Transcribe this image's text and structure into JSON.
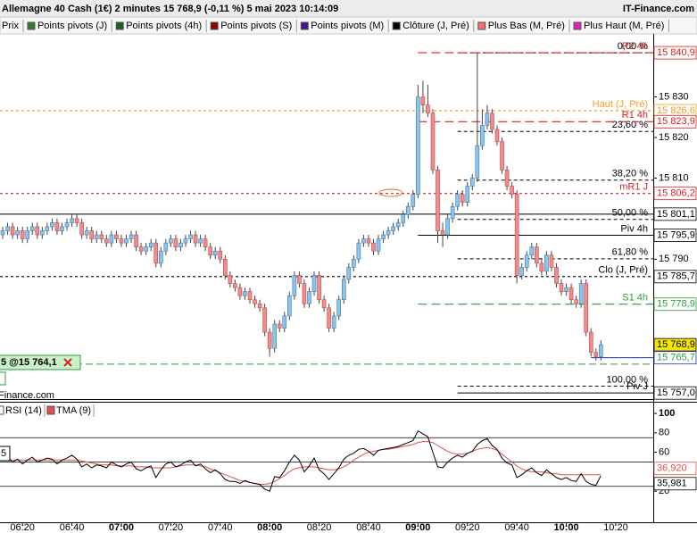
{
  "header": {
    "title": "Allemagne 40 Cash (1€) 2 minutes 15 768,9 (-0,11 %) 5 mai 2023 10:14:09",
    "brand": "IT-Finance.com",
    "watermark": "Finance.com"
  },
  "legend": [
    {
      "name": "Prix"
    },
    {
      "name": "Points pivots (J)",
      "color": "#2e7d32"
    },
    {
      "name": "Points pivots (4h)",
      "color": "#1b5e20"
    },
    {
      "name": "Points pivots (S)",
      "color": "#8b0000"
    },
    {
      "name": "Points pivots (M)",
      "color": "#4a148c"
    },
    {
      "name": "Clôture (J, Pré)",
      "color": "#000000"
    },
    {
      "name": "Plus Bas (M, Pré)",
      "color": "#f07070"
    },
    {
      "name": "Plus Haut (M, Pré)",
      "color": "#e020c0"
    }
  ],
  "chart_data": {
    "type": "candlestick",
    "up_color": "#8ec3ea",
    "down_color": "#f08c8c",
    "x": [
      "06:12",
      "06:14",
      "06:16",
      "06:18",
      "06:20",
      "06:22",
      "06:24",
      "06:26",
      "06:28",
      "06:30",
      "06:32",
      "06:34",
      "06:36",
      "06:38",
      "06:40",
      "06:42",
      "06:44",
      "06:46",
      "06:48",
      "06:50",
      "06:52",
      "06:54",
      "06:56",
      "06:58",
      "07:00",
      "07:02",
      "07:04",
      "07:06",
      "07:08",
      "07:10",
      "07:12",
      "07:14",
      "07:16",
      "07:18",
      "07:20",
      "07:22",
      "07:24",
      "07:26",
      "07:28",
      "07:30",
      "07:32",
      "07:34",
      "07:36",
      "07:38",
      "07:40",
      "07:42",
      "07:44",
      "07:46",
      "07:48",
      "07:50",
      "07:52",
      "07:54",
      "07:56",
      "07:58",
      "08:00",
      "08:02",
      "08:04",
      "08:06",
      "08:08",
      "08:10",
      "08:12",
      "08:14",
      "08:16",
      "08:18",
      "08:20",
      "08:22",
      "08:24",
      "08:26",
      "08:28",
      "08:30",
      "08:32",
      "08:34",
      "08:36",
      "08:38",
      "08:40",
      "08:42",
      "08:44",
      "08:46",
      "08:48",
      "08:50",
      "08:52",
      "08:54",
      "08:56",
      "08:58",
      "09:00",
      "09:02",
      "09:04",
      "09:06",
      "09:08",
      "09:10",
      "09:12",
      "09:14",
      "09:16",
      "09:18",
      "09:20",
      "09:22",
      "09:24",
      "09:26",
      "09:28",
      "09:30",
      "09:32",
      "09:34",
      "09:36",
      "09:38",
      "09:40",
      "09:42",
      "09:44",
      "09:46",
      "09:48",
      "09:50",
      "09:52",
      "09:54",
      "09:56",
      "09:58",
      "10:00",
      "10:02",
      "10:04",
      "10:06",
      "10:08",
      "10:10",
      "10:12",
      "10:14"
    ],
    "ohlc": [
      [
        15796,
        15798,
        15795,
        15797
      ],
      [
        15797,
        15799,
        15796,
        15798
      ],
      [
        15798,
        15799,
        15795,
        15796
      ],
      [
        15796,
        15798,
        15795,
        15797
      ],
      [
        15797,
        15798,
        15794,
        15795
      ],
      [
        15795,
        15798,
        15794,
        15797
      ],
      [
        15797,
        15799,
        15796,
        15798
      ],
      [
        15798,
        15799,
        15795,
        15796
      ],
      [
        15796,
        15798,
        15795,
        15797
      ],
      [
        15797,
        15799,
        15796,
        15798
      ],
      [
        15798,
        15800,
        15797,
        15799
      ],
      [
        15799,
        15800,
        15796,
        15797
      ],
      [
        15797,
        15799,
        15796,
        15798
      ],
      [
        15798,
        15800,
        15797,
        15799
      ],
      [
        15799,
        15801,
        15798,
        15800
      ],
      [
        15800,
        15801,
        15798,
        15799
      ],
      [
        15799,
        15800,
        15795,
        15796
      ],
      [
        15796,
        15798,
        15795,
        15797
      ],
      [
        15797,
        15798,
        15794,
        15795
      ],
      [
        15795,
        15797,
        15794,
        15796
      ],
      [
        15796,
        15797,
        15794,
        15795
      ],
      [
        15795,
        15796,
        15793,
        15794
      ],
      [
        15794,
        15797,
        15793,
        15796
      ],
      [
        15796,
        15797,
        15794,
        15795
      ],
      [
        15795,
        15796,
        15793,
        15794
      ],
      [
        15794,
        15796,
        15793,
        15795
      ],
      [
        15795,
        15797,
        15794,
        15796
      ],
      [
        15796,
        15797,
        15792,
        15793
      ],
      [
        15793,
        15794,
        15791,
        15792
      ],
      [
        15792,
        15794,
        15791,
        15793
      ],
      [
        15793,
        15795,
        15792,
        15794
      ],
      [
        15794,
        15795,
        15788,
        15789
      ],
      [
        15789,
        15793,
        15788,
        15792
      ],
      [
        15792,
        15795,
        15791,
        15794
      ],
      [
        15794,
        15796,
        15793,
        15795
      ],
      [
        15795,
        15796,
        15792,
        15793
      ],
      [
        15793,
        15795,
        15792,
        15794
      ],
      [
        15794,
        15796,
        15793,
        15795
      ],
      [
        15795,
        15797,
        15794,
        15796
      ],
      [
        15796,
        15797,
        15793,
        15794
      ],
      [
        15794,
        15796,
        15793,
        15795
      ],
      [
        15795,
        15796,
        15792,
        15793
      ],
      [
        15793,
        15794,
        15790,
        15791
      ],
      [
        15791,
        15793,
        15790,
        15792
      ],
      [
        15792,
        15793,
        15789,
        15790
      ],
      [
        15790,
        15791,
        15785,
        15786
      ],
      [
        15786,
        15787,
        15783,
        15784
      ],
      [
        15784,
        15785,
        15782,
        15783
      ],
      [
        15783,
        15784,
        15780,
        15781
      ],
      [
        15781,
        15783,
        15780,
        15782
      ],
      [
        15782,
        15783,
        15779,
        15780
      ],
      [
        15780,
        15781,
        15778,
        15779
      ],
      [
        15779,
        15780,
        15777,
        15778
      ],
      [
        15778,
        15779,
        15771,
        15772
      ],
      [
        15772,
        15773,
        15766,
        15768
      ],
      [
        15768,
        15775,
        15767,
        15774
      ],
      [
        15774,
        15775,
        15772,
        15773
      ],
      [
        15773,
        15777,
        15772,
        15776
      ],
      [
        15776,
        15782,
        15775,
        15781
      ],
      [
        15781,
        15787,
        15780,
        15786
      ],
      [
        15786,
        15787,
        15783,
        15784
      ],
      [
        15784,
        15785,
        15778,
        15779
      ],
      [
        15779,
        15783,
        15778,
        15782
      ],
      [
        15782,
        15787,
        15781,
        15786
      ],
      [
        15786,
        15787,
        15779,
        15780
      ],
      [
        15780,
        15781,
        15777,
        15778
      ],
      [
        15778,
        15779,
        15772,
        15773
      ],
      [
        15773,
        15777,
        15772,
        15776
      ],
      [
        15776,
        15781,
        15775,
        15780
      ],
      [
        15780,
        15786,
        15779,
        15785
      ],
      [
        15785,
        15789,
        15784,
        15788
      ],
      [
        15788,
        15791,
        15787,
        15790
      ],
      [
        15790,
        15795,
        15789,
        15794
      ],
      [
        15794,
        15796,
        15793,
        15795
      ],
      [
        15795,
        15796,
        15793,
        15794
      ],
      [
        15794,
        15795,
        15791,
        15792
      ],
      [
        15792,
        15796,
        15791,
        15795
      ],
      [
        15795,
        15797,
        15794,
        15796
      ],
      [
        15796,
        15798,
        15795,
        15797
      ],
      [
        15797,
        15799,
        15796,
        15798
      ],
      [
        15798,
        15800,
        15797,
        15799
      ],
      [
        15799,
        15802,
        15798,
        15801
      ],
      [
        15801,
        15804,
        15800,
        15803
      ],
      [
        15803,
        15807,
        15802,
        15806
      ],
      [
        15806,
        15833,
        15805,
        15830
      ],
      [
        15830,
        15834,
        15826,
        15828
      ],
      [
        15828,
        15833,
        15825,
        15826
      ],
      [
        15826,
        15827,
        15811,
        15812
      ],
      [
        15812,
        15813,
        15794,
        15797
      ],
      [
        15797,
        15799,
        15793,
        15796
      ],
      [
        15796,
        15801,
        15795,
        15800
      ],
      [
        15800,
        15804,
        15799,
        15803
      ],
      [
        15803,
        15807,
        15802,
        15806
      ],
      [
        15806,
        15807,
        15803,
        15804
      ],
      [
        15804,
        15809,
        15803,
        15808
      ],
      [
        15808,
        15811,
        15807,
        15810
      ],
      [
        15810,
        15841,
        15809,
        15818
      ],
      [
        15818,
        15827,
        15817,
        15823
      ],
      [
        15823,
        15828,
        15822,
        15826
      ],
      [
        15826,
        15827,
        15821,
        15822
      ],
      [
        15822,
        15823,
        15818,
        15819
      ],
      [
        15819,
        15820,
        15811,
        15812
      ],
      [
        15812,
        15813,
        15807,
        15808
      ],
      [
        15808,
        15809,
        15805,
        15806
      ],
      [
        15806,
        15807,
        15784,
        15786
      ],
      [
        15786,
        15789,
        15785,
        15788
      ],
      [
        15788,
        15792,
        15787,
        15791
      ],
      [
        15791,
        15794,
        15790,
        15793
      ],
      [
        15793,
        15794,
        15788,
        15789
      ],
      [
        15789,
        15790,
        15786,
        15787
      ],
      [
        15787,
        15792,
        15786,
        15791
      ],
      [
        15791,
        15792,
        15787,
        15788
      ],
      [
        15788,
        15789,
        15783,
        15784
      ],
      [
        15784,
        15785,
        15781,
        15782
      ],
      [
        15782,
        15784,
        15781,
        15783
      ],
      [
        15783,
        15784,
        15779,
        15780
      ],
      [
        15780,
        15781,
        15778,
        15779
      ],
      [
        15779,
        15785,
        15778,
        15784
      ],
      [
        15784,
        15785,
        15771,
        15772
      ],
      [
        15772,
        15773,
        15766,
        15767
      ],
      [
        15767,
        15768,
        15765,
        15766
      ],
      [
        15766,
        15770,
        15765,
        15768.9
      ]
    ],
    "ylim": [
      15755.5,
      15845.1
    ],
    "yticks": [
      {
        "value": 15830,
        "label": "15 830"
      },
      {
        "value": 15820,
        "label": "15 820"
      },
      {
        "value": 15810,
        "label": "15 810"
      },
      {
        "value": 15790,
        "label": "15 790"
      }
    ],
    "xticks": [
      "06:20",
      "06:40",
      "07:00",
      "07:20",
      "07:40",
      "08:00",
      "08:20",
      "08:40",
      "09:00",
      "09:20",
      "09:40",
      "10:00",
      "10:20"
    ],
    "bold_xticks": [
      "07:00",
      "08:00",
      "09:00",
      "10:00"
    ],
    "levels": [
      {
        "label": "R2 4h",
        "value": 15840.9,
        "price_label": "15 840,9",
        "color": "#d42020",
        "style": "dashed",
        "start": "09:00"
      },
      {
        "label": "Haut (J, Pré)",
        "value": 15826.6,
        "price_label": "15 826,6",
        "color": "#f0a020",
        "style": "dotted"
      },
      {
        "label": "R1 4h",
        "value": 15823.9,
        "price_label": "15 823,9",
        "color": "#d42020",
        "style": "dashed",
        "start": "09:00"
      },
      {
        "label": "mR1 J",
        "value": 15806.2,
        "price_label": "15 806,2",
        "color": "#d42020",
        "style": "dotted"
      },
      {
        "value": 15801.1,
        "price_label": "15 801,1",
        "color": "#000000",
        "style": "solid"
      },
      {
        "label": "Piv 4h",
        "value": 15795.9,
        "price_label": "15 795,9",
        "color": "#000000",
        "style": "solid",
        "start": "09:00"
      },
      {
        "label": "Clo (J, Pré)",
        "value": 15785.7,
        "price_label": "15 785,7",
        "color": "#000000",
        "style": "dotted"
      },
      {
        "label": "S1 4h",
        "value": 15778.9,
        "price_label": "15 778,9",
        "color": "#2e9a40",
        "style": "dashed",
        "start": "09:00"
      },
      {
        "value": 15768.9,
        "price_label": "15 768,9",
        "color": "#000000",
        "style": "none",
        "box_fill": "#f5e600"
      },
      {
        "value": 15765.7,
        "price_label": "15 765,7",
        "color": "#2030c0",
        "text_color": "#2e9a40",
        "style": "solid",
        "start": "10:10"
      },
      {
        "label": "Piv J",
        "value": 15757.0,
        "price_label": "15 757,0",
        "color": "#000000",
        "style": "solid",
        "start": "09:16"
      }
    ],
    "fib": [
      {
        "label": "0,00 %",
        "value": 15840.9
      },
      {
        "label": "23,60 %",
        "value": 15821.5
      },
      {
        "label": "38,20 %",
        "value": 15809.5
      },
      {
        "label": "50,00 %",
        "value": 15799.8
      },
      {
        "label": "61,80 %",
        "value": 15790.1
      },
      {
        "label": "100,00 %",
        "value": 15758.7
      }
    ],
    "fib_start": "09:16",
    "position": {
      "label": "5 @15 764,1",
      "value": 15764.1,
      "color": "#2e9a40"
    },
    "rsi": {
      "type": "line",
      "ylim": [
        -12,
        112
      ],
      "yticks": [
        100,
        80,
        60,
        40,
        20
      ],
      "lines": [
        75,
        50,
        25
      ],
      "left_label": "5",
      "series": [
        {
          "name": "RSI (14)",
          "color": "#000000",
          "last_label": "35,981",
          "values": [
            52,
            55,
            50,
            53,
            48,
            52,
            55,
            50,
            52,
            54,
            53,
            48,
            52,
            54,
            57,
            53,
            45,
            48,
            44,
            47,
            46,
            44,
            50,
            47,
            45,
            48,
            50,
            43,
            41,
            44,
            46,
            34,
            42,
            48,
            50,
            45,
            47,
            50,
            52,
            46,
            48,
            43,
            39,
            42,
            38,
            32,
            30,
            30,
            28,
            31,
            29,
            28,
            27,
            22,
            20,
            35,
            34,
            41,
            50,
            57,
            52,
            40,
            46,
            54,
            42,
            38,
            32,
            38,
            44,
            53,
            57,
            59,
            63,
            64,
            61,
            57,
            62,
            63,
            64,
            65,
            66,
            68,
            70,
            72,
            82,
            79,
            76,
            60,
            45,
            44,
            50,
            54,
            57,
            55,
            59,
            61,
            68,
            72,
            74,
            67,
            63,
            54,
            49,
            47,
            34,
            37,
            41,
            44,
            39,
            36,
            42,
            38,
            34,
            32,
            34,
            31,
            30,
            38,
            30,
            27,
            26,
            35.981
          ]
        },
        {
          "name": "TMA (9)",
          "color": "#e05050",
          "last_label": "36,920",
          "values": [
            52,
            52,
            52,
            52,
            52,
            52,
            52,
            52,
            52,
            52,
            52,
            52,
            52,
            52,
            52,
            52,
            51,
            50,
            49,
            48,
            47,
            47,
            47,
            46,
            46,
            46,
            46,
            45,
            45,
            45,
            44,
            44,
            44,
            44,
            44,
            45,
            46,
            47,
            47,
            47,
            46,
            45,
            43,
            41,
            39,
            37,
            35,
            33,
            31,
            30,
            29,
            28,
            27,
            27,
            28,
            30,
            33,
            36,
            40,
            43,
            44,
            45,
            45,
            45,
            44,
            43,
            42,
            42,
            43,
            45,
            48,
            52,
            55,
            58,
            60,
            61,
            62,
            63,
            63,
            64,
            65,
            66,
            67,
            68,
            70,
            71,
            71,
            70,
            67,
            64,
            61,
            59,
            58,
            58,
            59,
            61,
            63,
            64,
            65,
            64,
            62,
            58,
            54,
            50,
            46,
            43,
            41,
            40,
            40,
            40,
            39,
            38,
            38,
            37,
            37,
            37,
            37,
            37,
            37,
            37,
            36.9,
            36.92
          ]
        }
      ]
    }
  }
}
